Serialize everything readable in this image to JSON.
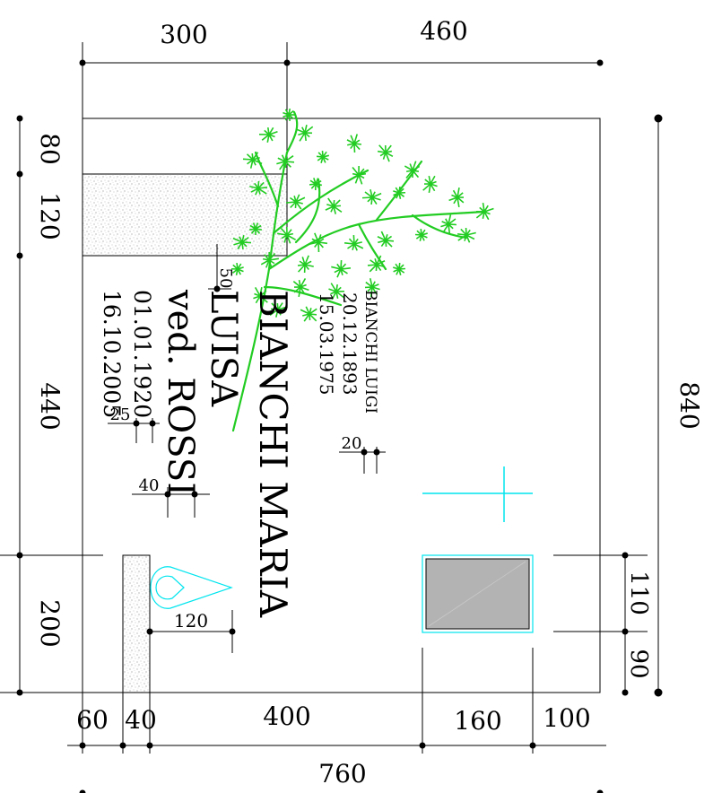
{
  "drawing": {
    "dimensions_top": [
      "300",
      "460"
    ],
    "dimensions_bottom": [
      "60",
      "40",
      "400",
      "160",
      "100"
    ],
    "dimension_total_bottom": "760",
    "dimensions_left": [
      "80",
      "120",
      "440",
      "200"
    ],
    "dimension_total_right": "840",
    "dimensions_right_small": [
      "110",
      "90"
    ],
    "dimension_flame": "120",
    "dimension_small_50": "50",
    "dimension_small_25": "25",
    "dimension_small_40": "40",
    "dimension_small_20": "20"
  },
  "inscription": {
    "main_surname": "BIANCHI MARIA",
    "main_name": "LUISA",
    "main_married": "ved. ROSSI",
    "main_birth": "01.01.1920",
    "main_death": "16.10.2005",
    "second_name": "BIANCHI LUIGI",
    "second_birth": "20.12.1893",
    "second_death": "15.03.1975"
  },
  "colors": {
    "line": "#000000",
    "cyan": "#00e5ee",
    "tree": "#22cc22",
    "photo_fill": "#b3b3b3",
    "stone_texture": "#d9d9d9"
  }
}
